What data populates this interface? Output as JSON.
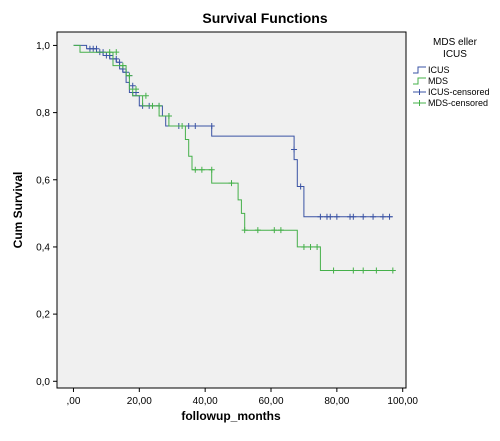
{
  "chart_data": {
    "type": "line",
    "title": "Survival Functions",
    "xlabel": "followup_months",
    "ylabel": "Cum Survival",
    "xlim": [
      -5,
      101
    ],
    "ylim": [
      -0.02,
      1.04
    ],
    "x_ticks": [
      0,
      20,
      40,
      60,
      80,
      100
    ],
    "x_tick_labels": [
      ",00",
      "20,00",
      "40,00",
      "60,00",
      "80,00",
      "100,00"
    ],
    "y_ticks": [
      0,
      0.2,
      0.4,
      0.6,
      0.8,
      1.0
    ],
    "y_tick_labels": [
      "0,0",
      "0,2",
      "0,4",
      "0,6",
      "0,8",
      "1,0"
    ],
    "grid": false,
    "legend_position": "right",
    "legend_title": "MDS eller ICUS",
    "legend": [
      "ICUS",
      "MDS",
      "ICUS-censored",
      "MDS-censored"
    ],
    "colors": {
      "icus": "#3a53a4",
      "mds": "#45b04a",
      "plot_background": "#f0f0f0"
    },
    "series": [
      {
        "name": "ICUS",
        "type": "step",
        "points": [
          [
            0,
            1.0
          ],
          [
            4,
            1.0
          ],
          [
            4,
            0.99
          ],
          [
            7,
            0.99
          ],
          [
            7,
            0.98
          ],
          [
            9,
            0.98
          ],
          [
            9,
            0.97
          ],
          [
            11,
            0.97
          ],
          [
            11,
            0.96
          ],
          [
            13,
            0.96
          ],
          [
            13,
            0.95
          ],
          [
            14,
            0.95
          ],
          [
            14,
            0.93
          ],
          [
            15,
            0.93
          ],
          [
            15,
            0.92
          ],
          [
            16,
            0.92
          ],
          [
            16,
            0.89
          ],
          [
            17,
            0.89
          ],
          [
            17,
            0.86
          ],
          [
            18,
            0.86
          ],
          [
            18,
            0.85
          ],
          [
            20,
            0.85
          ],
          [
            20,
            0.82
          ],
          [
            27,
            0.82
          ],
          [
            27,
            0.79
          ],
          [
            28,
            0.79
          ],
          [
            28,
            0.76
          ],
          [
            42,
            0.76
          ],
          [
            42,
            0.73
          ],
          [
            67,
            0.73
          ],
          [
            67,
            0.66
          ],
          [
            68,
            0.66
          ],
          [
            68,
            0.58
          ],
          [
            70,
            0.58
          ],
          [
            70,
            0.49
          ],
          [
            97,
            0.49
          ]
        ],
        "censored_x": [
          5,
          6,
          7,
          8,
          9,
          10,
          11,
          12,
          13,
          14,
          15,
          16,
          17,
          18,
          19,
          21,
          23,
          26,
          29,
          32,
          35,
          37,
          42,
          67,
          69,
          75,
          77,
          78,
          80,
          84,
          85,
          88,
          91,
          94,
          96
        ],
        "censored_y": [
          0.99,
          0.99,
          0.99,
          0.98,
          0.98,
          0.97,
          0.97,
          0.96,
          0.96,
          0.95,
          0.93,
          0.92,
          0.91,
          0.88,
          0.86,
          0.82,
          0.82,
          0.82,
          0.79,
          0.76,
          0.76,
          0.76,
          0.76,
          0.69,
          0.58,
          0.49,
          0.49,
          0.49,
          0.49,
          0.49,
          0.49,
          0.49,
          0.49,
          0.49,
          0.49
        ]
      },
      {
        "name": "MDS",
        "type": "step",
        "points": [
          [
            0,
            1.0
          ],
          [
            2,
            1.0
          ],
          [
            2,
            0.98
          ],
          [
            12,
            0.98
          ],
          [
            12,
            0.94
          ],
          [
            16,
            0.94
          ],
          [
            16,
            0.91
          ],
          [
            17,
            0.91
          ],
          [
            17,
            0.87
          ],
          [
            18,
            0.87
          ],
          [
            18,
            0.85
          ],
          [
            21,
            0.85
          ],
          [
            21,
            0.82
          ],
          [
            26,
            0.82
          ],
          [
            26,
            0.79
          ],
          [
            29,
            0.79
          ],
          [
            29,
            0.76
          ],
          [
            34,
            0.76
          ],
          [
            34,
            0.72
          ],
          [
            35,
            0.72
          ],
          [
            35,
            0.67
          ],
          [
            36,
            0.67
          ],
          [
            36,
            0.63
          ],
          [
            42,
            0.63
          ],
          [
            42,
            0.59
          ],
          [
            50,
            0.59
          ],
          [
            50,
            0.54
          ],
          [
            51,
            0.54
          ],
          [
            51,
            0.5
          ],
          [
            52,
            0.5
          ],
          [
            52,
            0.45
          ],
          [
            68,
            0.45
          ],
          [
            68,
            0.4
          ],
          [
            75,
            0.4
          ],
          [
            75,
            0.33
          ],
          [
            97,
            0.33
          ]
        ],
        "censored_x": [
          11,
          13,
          15,
          17,
          19,
          22,
          24,
          26,
          29,
          33,
          37,
          39,
          42,
          48,
          52,
          56,
          61,
          63,
          70,
          72,
          74,
          79,
          85,
          88,
          92,
          97
        ],
        "censored_y": [
          0.98,
          0.98,
          0.94,
          0.91,
          0.87,
          0.85,
          0.82,
          0.82,
          0.79,
          0.76,
          0.63,
          0.63,
          0.63,
          0.59,
          0.45,
          0.45,
          0.45,
          0.45,
          0.4,
          0.4,
          0.4,
          0.33,
          0.33,
          0.33,
          0.33,
          0.33
        ]
      }
    ]
  }
}
